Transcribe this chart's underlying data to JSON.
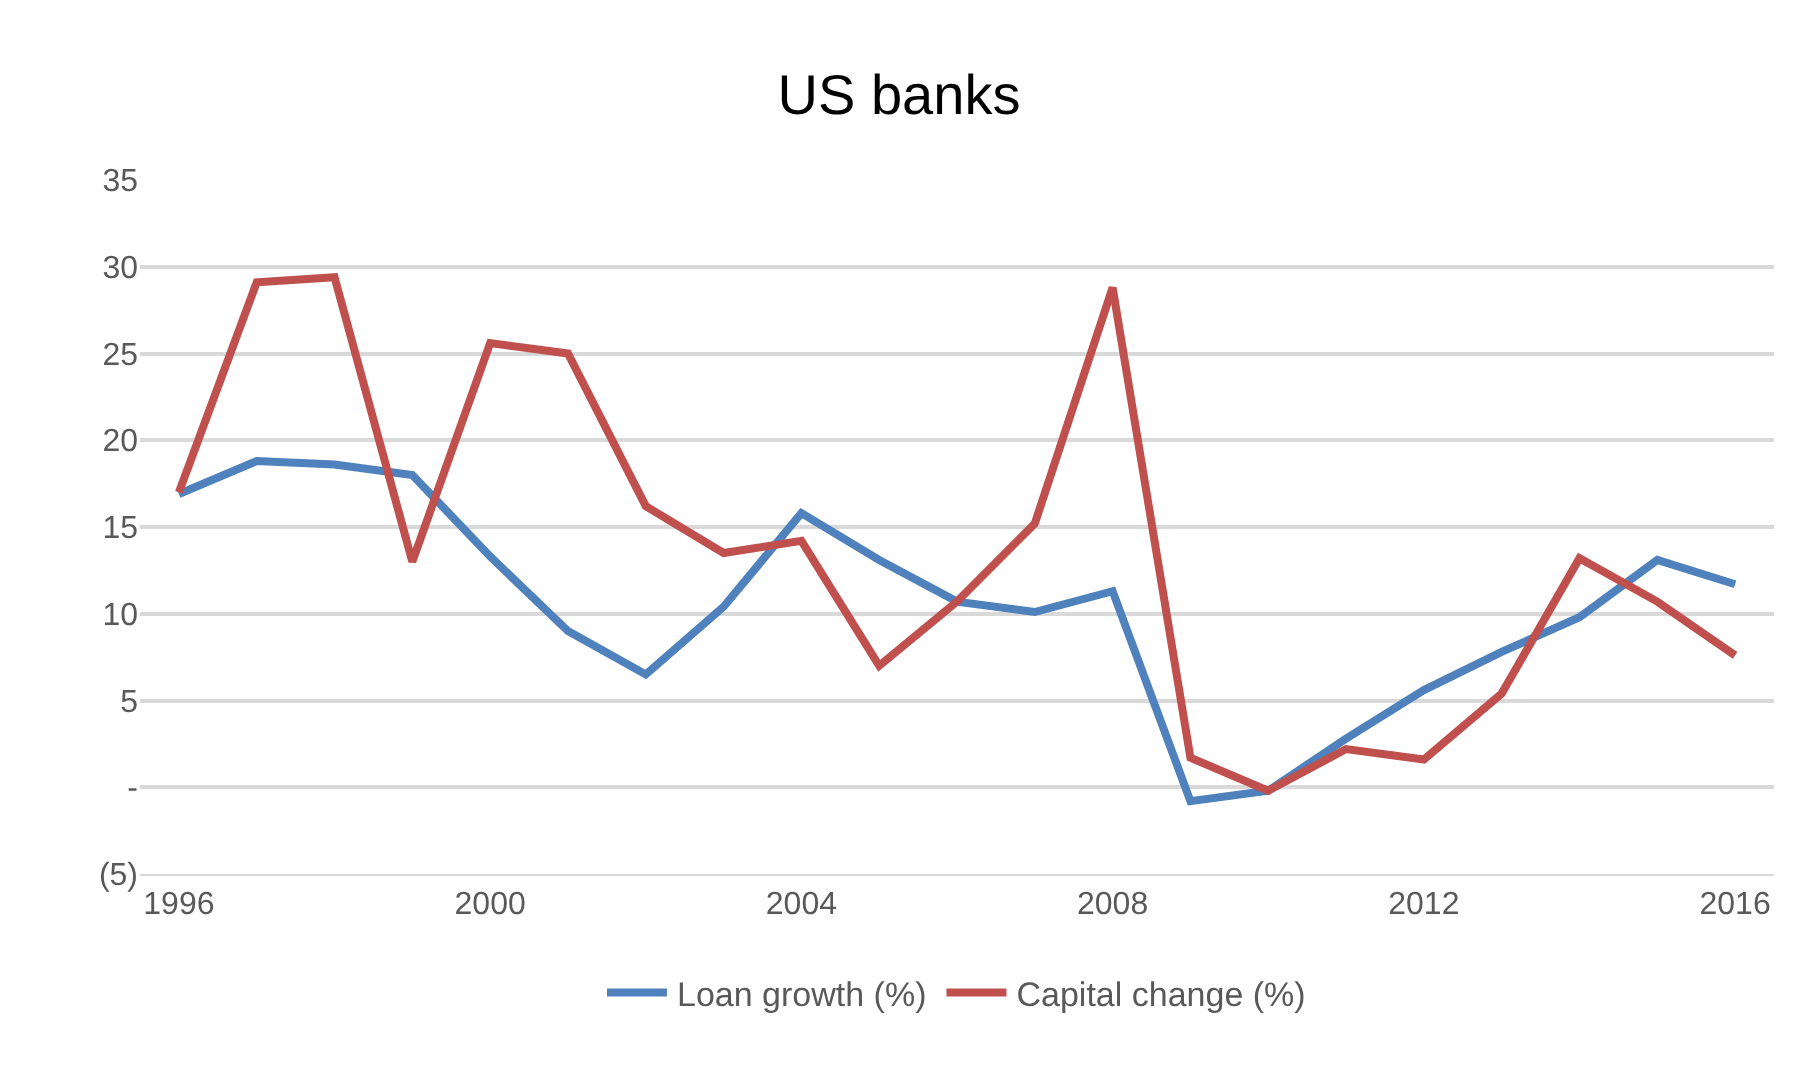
{
  "chart_data": {
    "type": "line",
    "title": "US banks",
    "x": [
      1996,
      1997,
      1998,
      1999,
      2000,
      2001,
      2002,
      2003,
      2004,
      2005,
      2006,
      2007,
      2008,
      2009,
      2010,
      2011,
      2012,
      2013,
      2014,
      2015,
      2016
    ],
    "series": [
      {
        "name": "Loan growth (%)",
        "color": "#4f81bd",
        "values": [
          16.9,
          18.8,
          18.6,
          18.0,
          13.3,
          9.0,
          6.5,
          10.4,
          15.8,
          13.1,
          10.7,
          10.1,
          11.3,
          -0.8,
          -0.2,
          2.8,
          5.6,
          7.8,
          9.8,
          13.1,
          11.7
        ]
      },
      {
        "name": "Capital change (%)",
        "color": "#c0504d",
        "values": [
          17.0,
          29.1,
          29.4,
          13.0,
          25.6,
          25.0,
          16.2,
          13.5,
          14.2,
          7.0,
          10.7,
          15.2,
          28.8,
          1.7,
          -0.2,
          2.2,
          1.6,
          5.4,
          13.2,
          10.7,
          7.6
        ]
      }
    ],
    "xlim": [
      1995.5,
      2016.5
    ],
    "xticks": [
      1996,
      2000,
      2004,
      2008,
      2012,
      2016
    ],
    "ylim": [
      -5,
      35
    ],
    "yticks": [
      {
        "value": -5,
        "label": "(5)"
      },
      {
        "value": 0,
        "label": "-"
      },
      5,
      10,
      15,
      20,
      25,
      30,
      35
    ],
    "grid": "y",
    "legend": "bottom",
    "marker": "none",
    "line_style": "solid"
  }
}
